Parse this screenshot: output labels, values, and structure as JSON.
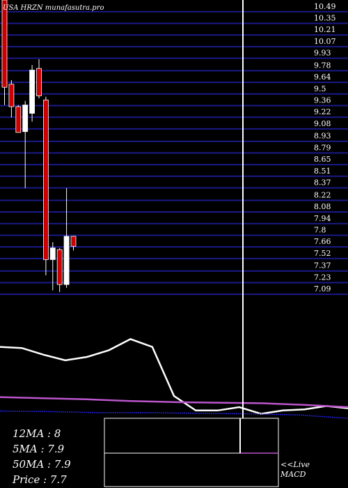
{
  "chart_data": [
    {
      "type": "candlestick",
      "title": "USA HRZN munafasutra.pro",
      "y_ticks": [
        10.49,
        10.35,
        10.21,
        10.07,
        9.93,
        9.78,
        9.64,
        9.5,
        9.36,
        9.22,
        9.08,
        8.93,
        8.79,
        8.65,
        8.51,
        8.37,
        8.22,
        8.08,
        7.94,
        7.8,
        7.66,
        7.52,
        7.37,
        7.23,
        7.09
      ],
      "ylim": [
        6.99,
        10.53
      ],
      "grid": true,
      "colors": {
        "up": "#ffffff",
        "down": "#cc0000",
        "grid": "#1a1a8a",
        "background": "#000000"
      },
      "candles": [
        {
          "open": 10.6,
          "high": 10.6,
          "low": 9.3,
          "close": 9.55,
          "dir": "down"
        },
        {
          "open": 9.55,
          "high": 9.6,
          "low": 9.15,
          "close": 9.28,
          "dir": "down"
        },
        {
          "open": 9.28,
          "high": 9.3,
          "low": 8.97,
          "close": 8.97,
          "dir": "down"
        },
        {
          "open": 8.98,
          "high": 9.35,
          "low": 8.3,
          "close": 9.3,
          "dir": "up"
        },
        {
          "open": 9.2,
          "high": 9.78,
          "low": 9.1,
          "close": 9.72,
          "dir": "up"
        },
        {
          "open": 9.74,
          "high": 9.85,
          "low": 9.38,
          "close": 9.41,
          "dir": "down"
        },
        {
          "open": 9.36,
          "high": 9.4,
          "low": 7.25,
          "close": 7.44,
          "dir": "down"
        },
        {
          "open": 7.44,
          "high": 7.65,
          "low": 7.07,
          "close": 7.58,
          "dir": "up"
        },
        {
          "open": 7.56,
          "high": 7.58,
          "low": 7.05,
          "close": 7.14,
          "dir": "down"
        },
        {
          "open": 7.14,
          "high": 8.3,
          "low": 7.1,
          "close": 7.72,
          "dir": "up"
        },
        {
          "open": 7.72,
          "high": 7.72,
          "low": 7.55,
          "close": 7.6,
          "dir": "down"
        }
      ]
    },
    {
      "type": "line",
      "series": [
        {
          "color": "#ffffff",
          "values": [
            0.64,
            0.63,
            0.57,
            0.52,
            0.55,
            0.61,
            0.71,
            0.64,
            0.2,
            0.07,
            0.07,
            0.1,
            0.04,
            0.07,
            0.08,
            0.11,
            0.09
          ]
        },
        {
          "color": "#bb55cc",
          "values": [
            0.19,
            0.18,
            0.17,
            0.155,
            0.145,
            0.14,
            0.135,
            0.12,
            0.1
          ]
        },
        {
          "color": "#2222dd",
          "values": [
            0.065,
            0.06,
            0.05,
            0.05,
            0.045,
            0.04,
            0.03,
            0.0
          ]
        }
      ],
      "macd_panel": {
        "colors": {
          "box": "#ffffff",
          "signal": "#bb55cc"
        }
      }
    }
  ],
  "info": {
    "ma12": "12MA : 8",
    "ma5": "5MA : 7.9",
    "ma50": "50MA : 7.9",
    "price": "Price   : 7.7",
    "live_1": "<<Live",
    "live_2": "MACD"
  }
}
